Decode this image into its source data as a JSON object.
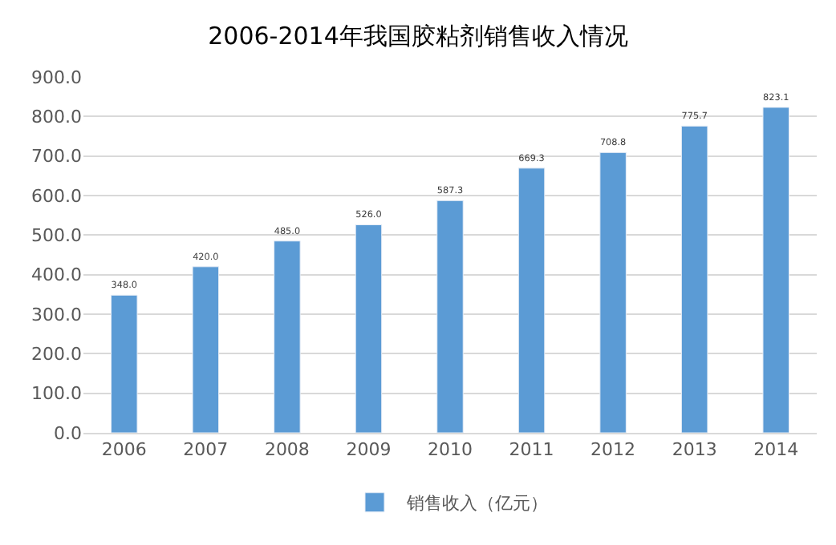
{
  "chart_data": {
    "type": "bar",
    "title": "2006-2014年我国胶粘剂销售收入情况",
    "categories": [
      "2006",
      "2007",
      "2008",
      "2009",
      "2010",
      "2011",
      "2012",
      "2013",
      "2014"
    ],
    "series": [
      {
        "name": "销售收入（亿元）",
        "color": "#5b9bd5",
        "values": [
          348.0,
          420.0,
          485.0,
          526.0,
          587.3,
          669.3,
          708.8,
          775.7,
          823.1
        ],
        "value_labels": [
          "348.0",
          "420.0",
          "485.0",
          "526.0",
          "587.3",
          "669.3",
          "708.8",
          "775.7",
          "823.1"
        ]
      }
    ],
    "ylim": [
      0,
      900
    ],
    "yticks": [
      {
        "value": 0,
        "label": "0.0"
      },
      {
        "value": 100,
        "label": "100.0"
      },
      {
        "value": 200,
        "label": "200.0"
      },
      {
        "value": 300,
        "label": "300.0"
      },
      {
        "value": 400,
        "label": "400.0"
      },
      {
        "value": 500,
        "label": "500.0"
      },
      {
        "value": 600,
        "label": "600.0"
      },
      {
        "value": 700,
        "label": "700.0"
      },
      {
        "value": 800,
        "label": "800.0"
      },
      {
        "value": 900,
        "label": "900.0"
      }
    ],
    "grid": "y",
    "legend": "bottom"
  }
}
